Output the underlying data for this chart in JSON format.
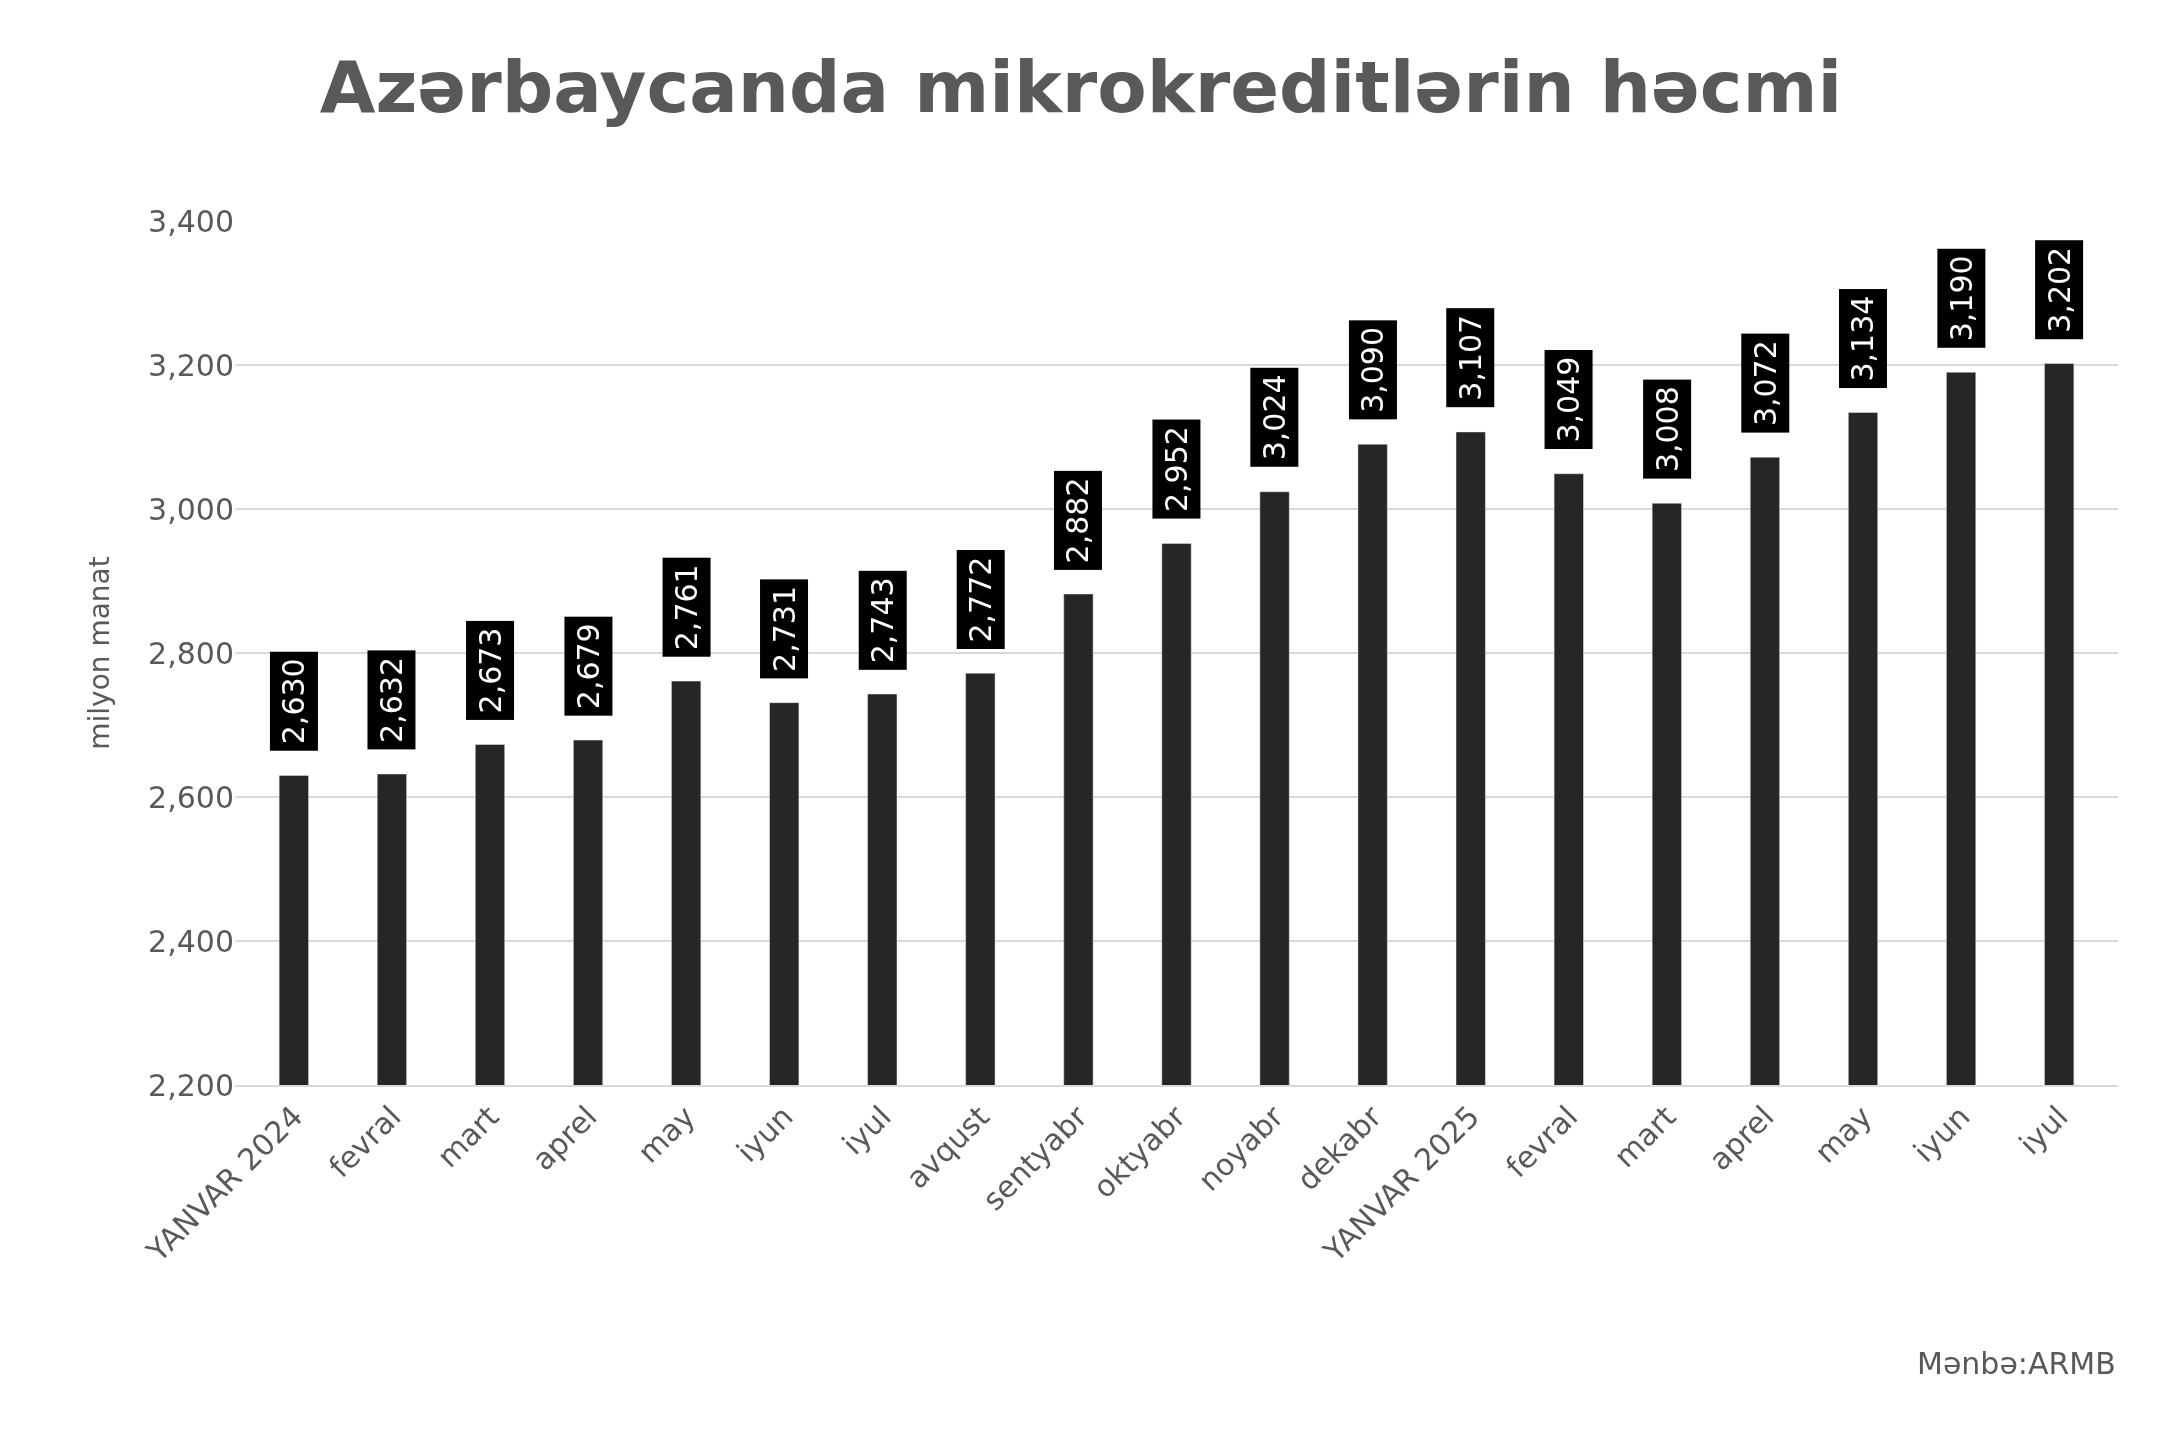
{
  "chart_data": {
    "type": "bar",
    "title": "Azərbaycanda mikrokreditlərin həcmi",
    "ylabel": "milyon manat",
    "categories": [
      "YANVAR 2024",
      "fevral",
      "mart",
      "aprel",
      "may",
      "iyun",
      "iyul",
      "avqust",
      "sentyabr",
      "oktyabr",
      "noyabr",
      "dekabr",
      "YANVAR 2025",
      "fevral",
      "mart",
      "aprel",
      "may",
      "iyun",
      "iyul"
    ],
    "values": [
      2630,
      2632,
      2673,
      2679,
      2761,
      2731,
      2743,
      2772,
      2882,
      2952,
      3024,
      3090,
      3107,
      3049,
      3008,
      3072,
      3134,
      3190,
      3202
    ],
    "value_labels": [
      "2,630",
      "2,632",
      "2,673",
      "2,679",
      "2,761",
      "2,731",
      "2,743",
      "2,772",
      "2,882",
      "2,952",
      "3,024",
      "3,090",
      "3,107",
      "3,049",
      "3,008",
      "3,072",
      "3,134",
      "3,190",
      "3,202"
    ],
    "color": "#262626",
    "ylim": [
      2200,
      3400
    ],
    "yticks": [
      {
        "value": 2200,
        "label": "2,200"
      },
      {
        "value": 2400,
        "label": "2,400"
      },
      {
        "value": 2600,
        "label": "2,600"
      },
      {
        "value": 2800,
        "label": "2,800"
      },
      {
        "value": 3000,
        "label": "3,000"
      },
      {
        "value": 3200,
        "label": "3,200"
      },
      {
        "value": 3400,
        "label": "3,400"
      }
    ],
    "grid": "y",
    "annotations": [
      "Mənbə:ARMB"
    ]
  }
}
